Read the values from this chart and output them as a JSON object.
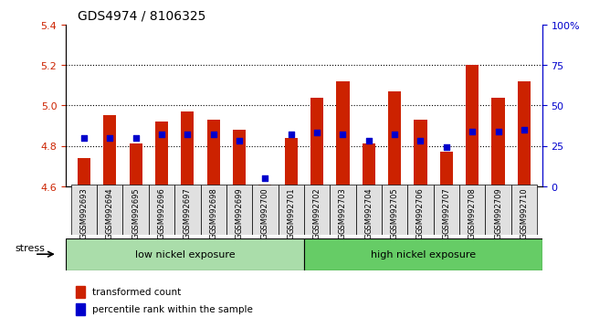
{
  "title": "GDS4974 / 8106325",
  "samples": [
    "GSM992693",
    "GSM992694",
    "GSM992695",
    "GSM992696",
    "GSM992697",
    "GSM992698",
    "GSM992699",
    "GSM992700",
    "GSM992701",
    "GSM992702",
    "GSM992703",
    "GSM992704",
    "GSM992705",
    "GSM992706",
    "GSM992707",
    "GSM992708",
    "GSM992709",
    "GSM992710"
  ],
  "transformed_count": [
    4.74,
    4.95,
    4.81,
    4.92,
    4.97,
    4.93,
    4.88,
    4.61,
    4.84,
    5.04,
    5.12,
    4.81,
    5.07,
    4.93,
    4.77,
    5.2,
    5.04,
    5.12
  ],
  "percentile_rank": [
    30,
    30,
    30,
    32,
    32,
    32,
    28,
    5,
    32,
    33,
    32,
    28,
    32,
    28,
    24,
    34,
    34,
    35
  ],
  "ylim_left": [
    4.6,
    5.4
  ],
  "ylim_right": [
    0,
    100
  ],
  "yticks_left": [
    4.6,
    4.8,
    5.0,
    5.2,
    5.4
  ],
  "yticks_right": [
    0,
    25,
    50,
    75,
    100
  ],
  "ytick_labels_right": [
    "0",
    "25",
    "50",
    "75",
    "100%"
  ],
  "bar_color": "#cc2200",
  "dot_color": "#0000cc",
  "grid_color": "#000000",
  "low_nickel_count": 9,
  "group_labels": [
    "low nickel exposure",
    "high nickel exposure"
  ],
  "group_colors": [
    "#90ee90",
    "#44cc44"
  ],
  "stress_label": "stress",
  "legend_items": [
    "transformed count",
    "percentile rank within the sample"
  ],
  "legend_colors": [
    "#cc2200",
    "#0000cc"
  ],
  "bar_width": 0.5,
  "title_fontsize": 10,
  "axis_color_left": "#cc2200",
  "axis_color_right": "#0000cc",
  "bg_color": "#ffffff",
  "plot_bg": "#ffffff"
}
